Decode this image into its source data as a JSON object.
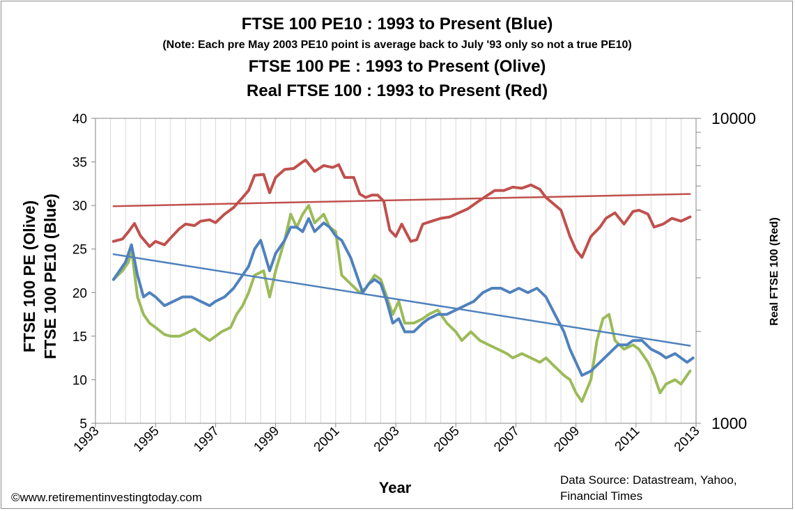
{
  "chart_data": {
    "type": "line",
    "title_lines": [
      "FTSE 100 PE10 : 1993 to Present (Blue)",
      "(Note:  Each pre May 2003  PE10 point is average  back to July '93 only so not a true PE10)",
      "FTSE 100 PE : 1993 to Present (Olive)",
      "Real FTSE 100 : 1993 to Present (Red)"
    ],
    "xlabel": "Year",
    "ylabel_left_outer": "FTSE 100 PE (Olive)",
    "ylabel_left_inner": "FTSE 100 PE10 (Blue)",
    "ylabel_right": "Real  FTSE 100 (Red)",
    "xlim": [
      1993,
      2013
    ],
    "x_ticks": [
      1993,
      1995,
      1997,
      1999,
      2001,
      2003,
      2005,
      2007,
      2009,
      2011,
      2013
    ],
    "x_tick_labels": [
      "1993",
      "1995",
      "1997",
      "1999",
      "2001",
      "2003",
      "2005",
      "2007",
      "2009",
      "2011",
      "2013"
    ],
    "ylim_left": [
      5,
      40
    ],
    "y_ticks_left": [
      5,
      10,
      15,
      20,
      25,
      30,
      35,
      40
    ],
    "y_tick_labels_left": [
      "5",
      "10",
      "15",
      "20",
      "25",
      "30",
      "35",
      "40"
    ],
    "ylim_right": [
      1000,
      10000
    ],
    "y_scale_right": "log",
    "y_tick_labels_right": [
      "1000",
      "10000"
    ],
    "grid": "vertical",
    "series": [
      {
        "name": "Real FTSE 100",
        "color": "#c0504d",
        "axis": "right",
        "points": [
          [
            1993.6,
            3950
          ],
          [
            1993.9,
            4020
          ],
          [
            1994.1,
            4250
          ],
          [
            1994.3,
            4520
          ],
          [
            1994.5,
            4120
          ],
          [
            1994.8,
            3800
          ],
          [
            1995.0,
            3950
          ],
          [
            1995.3,
            3850
          ],
          [
            1995.5,
            4050
          ],
          [
            1995.8,
            4350
          ],
          [
            1996.0,
            4500
          ],
          [
            1996.3,
            4450
          ],
          [
            1996.5,
            4600
          ],
          [
            1996.8,
            4650
          ],
          [
            1997.0,
            4550
          ],
          [
            1997.3,
            4850
          ],
          [
            1997.6,
            5100
          ],
          [
            1997.9,
            5500
          ],
          [
            1998.1,
            5800
          ],
          [
            1998.3,
            6500
          ],
          [
            1998.6,
            6550
          ],
          [
            1998.8,
            5700
          ],
          [
            1999.0,
            6400
          ],
          [
            1999.3,
            6800
          ],
          [
            1999.6,
            6850
          ],
          [
            1999.9,
            7200
          ],
          [
            2000.0,
            7300
          ],
          [
            2000.3,
            6700
          ],
          [
            2000.6,
            7000
          ],
          [
            2000.9,
            6900
          ],
          [
            2001.1,
            7050
          ],
          [
            2001.3,
            6400
          ],
          [
            2001.6,
            6400
          ],
          [
            2001.8,
            5650
          ],
          [
            2002.0,
            5500
          ],
          [
            2002.2,
            5600
          ],
          [
            2002.4,
            5600
          ],
          [
            2002.6,
            5350
          ],
          [
            2002.8,
            4300
          ],
          [
            2003.0,
            4100
          ],
          [
            2003.2,
            4500
          ],
          [
            2003.5,
            3950
          ],
          [
            2003.7,
            4000
          ],
          [
            2003.9,
            4500
          ],
          [
            2004.2,
            4600
          ],
          [
            2004.5,
            4700
          ],
          [
            2004.8,
            4750
          ],
          [
            2005.1,
            4900
          ],
          [
            2005.4,
            5050
          ],
          [
            2005.7,
            5300
          ],
          [
            2006.0,
            5550
          ],
          [
            2006.3,
            5800
          ],
          [
            2006.6,
            5800
          ],
          [
            2006.9,
            5950
          ],
          [
            2007.2,
            5900
          ],
          [
            2007.5,
            6050
          ],
          [
            2007.8,
            5850
          ],
          [
            2008.0,
            5500
          ],
          [
            2008.2,
            5300
          ],
          [
            2008.5,
            5000
          ],
          [
            2008.8,
            4100
          ],
          [
            2009.0,
            3700
          ],
          [
            2009.2,
            3500
          ],
          [
            2009.5,
            4100
          ],
          [
            2009.8,
            4400
          ],
          [
            2010.0,
            4700
          ],
          [
            2010.3,
            4900
          ],
          [
            2010.6,
            4500
          ],
          [
            2010.9,
            4950
          ],
          [
            2011.1,
            5000
          ],
          [
            2011.4,
            4850
          ],
          [
            2011.6,
            4400
          ],
          [
            2011.9,
            4500
          ],
          [
            2012.2,
            4700
          ],
          [
            2012.5,
            4600
          ],
          [
            2012.8,
            4750
          ]
        ]
      },
      {
        "name": "Real FTSE 100 trend",
        "color": "#c0504d",
        "axis": "right",
        "points": [
          [
            1993.6,
            5150
          ],
          [
            2012.8,
            5650
          ]
        ]
      },
      {
        "name": "FTSE 100 PE",
        "color": "#9bbb59",
        "axis": "left",
        "points": [
          [
            1993.6,
            21.5
          ],
          [
            1993.9,
            22.5
          ],
          [
            1994.1,
            23.5
          ],
          [
            1994.2,
            25.0
          ],
          [
            1994.4,
            19.5
          ],
          [
            1994.6,
            17.5
          ],
          [
            1994.8,
            16.5
          ],
          [
            1995.0,
            16.0
          ],
          [
            1995.3,
            15.2
          ],
          [
            1995.5,
            15.0
          ],
          [
            1995.8,
            15.0
          ],
          [
            1996.0,
            15.3
          ],
          [
            1996.3,
            15.8
          ],
          [
            1996.5,
            15.2
          ],
          [
            1996.8,
            14.5
          ],
          [
            1997.0,
            15.0
          ],
          [
            1997.2,
            15.5
          ],
          [
            1997.5,
            16.0
          ],
          [
            1997.7,
            17.5
          ],
          [
            1997.9,
            18.5
          ],
          [
            1998.1,
            20.0
          ],
          [
            1998.3,
            22.0
          ],
          [
            1998.6,
            22.5
          ],
          [
            1998.8,
            19.5
          ],
          [
            1999.0,
            22.5
          ],
          [
            1999.3,
            26.0
          ],
          [
            1999.5,
            29.0
          ],
          [
            1999.7,
            27.5
          ],
          [
            1999.9,
            29.0
          ],
          [
            2000.1,
            30.0
          ],
          [
            2000.3,
            28.0
          ],
          [
            2000.6,
            29.0
          ],
          [
            2000.8,
            27.5
          ],
          [
            2001.0,
            27.0
          ],
          [
            2001.2,
            22.0
          ],
          [
            2001.5,
            21.0
          ],
          [
            2001.8,
            20.0
          ],
          [
            2002.0,
            20.5
          ],
          [
            2002.3,
            22.0
          ],
          [
            2002.5,
            21.5
          ],
          [
            2002.7,
            19.5
          ],
          [
            2002.9,
            17.5
          ],
          [
            2003.1,
            19.0
          ],
          [
            2003.3,
            16.5
          ],
          [
            2003.6,
            16.5
          ],
          [
            2003.9,
            17.0
          ],
          [
            2004.1,
            17.5
          ],
          [
            2004.4,
            18.0
          ],
          [
            2004.7,
            16.5
          ],
          [
            2005.0,
            15.5
          ],
          [
            2005.2,
            14.5
          ],
          [
            2005.5,
            15.5
          ],
          [
            2005.8,
            14.5
          ],
          [
            2006.1,
            14.0
          ],
          [
            2006.4,
            13.5
          ],
          [
            2006.7,
            13.0
          ],
          [
            2006.9,
            12.5
          ],
          [
            2007.2,
            13.0
          ],
          [
            2007.5,
            12.5
          ],
          [
            2007.8,
            12.0
          ],
          [
            2008.0,
            12.5
          ],
          [
            2008.3,
            11.5
          ],
          [
            2008.6,
            10.5
          ],
          [
            2008.8,
            10.0
          ],
          [
            2009.0,
            8.5
          ],
          [
            2009.2,
            7.5
          ],
          [
            2009.5,
            10.0
          ],
          [
            2009.7,
            14.5
          ],
          [
            2009.9,
            17.0
          ],
          [
            2010.1,
            17.5
          ],
          [
            2010.3,
            14.5
          ],
          [
            2010.6,
            13.5
          ],
          [
            2010.9,
            14.0
          ],
          [
            2011.1,
            13.5
          ],
          [
            2011.4,
            12.0
          ],
          [
            2011.6,
            10.5
          ],
          [
            2011.8,
            8.5
          ],
          [
            2012.0,
            9.5
          ],
          [
            2012.3,
            10.0
          ],
          [
            2012.5,
            9.5
          ],
          [
            2012.8,
            11.0
          ]
        ]
      },
      {
        "name": "FTSE 100 PE10",
        "color": "#4f81bd",
        "axis": "left",
        "points": [
          [
            1993.6,
            21.5
          ],
          [
            1993.8,
            22.5
          ],
          [
            1994.0,
            23.5
          ],
          [
            1994.2,
            25.5
          ],
          [
            1994.4,
            22.0
          ],
          [
            1994.6,
            19.5
          ],
          [
            1994.8,
            20.0
          ],
          [
            1995.0,
            19.5
          ],
          [
            1995.3,
            18.5
          ],
          [
            1995.6,
            19.0
          ],
          [
            1995.9,
            19.5
          ],
          [
            1996.2,
            19.5
          ],
          [
            1996.5,
            19.0
          ],
          [
            1996.8,
            18.5
          ],
          [
            1997.0,
            19.0
          ],
          [
            1997.3,
            19.5
          ],
          [
            1997.6,
            20.5
          ],
          [
            1997.9,
            22.0
          ],
          [
            1998.1,
            23.0
          ],
          [
            1998.3,
            25.0
          ],
          [
            1998.5,
            26.0
          ],
          [
            1998.8,
            22.5
          ],
          [
            1999.0,
            24.5
          ],
          [
            1999.3,
            26.0
          ],
          [
            1999.5,
            27.5
          ],
          [
            1999.7,
            27.5
          ],
          [
            1999.9,
            27.0
          ],
          [
            2000.1,
            28.5
          ],
          [
            2000.3,
            27.0
          ],
          [
            2000.6,
            28.0
          ],
          [
            2000.8,
            27.5
          ],
          [
            2001.0,
            26.5
          ],
          [
            2001.2,
            26.0
          ],
          [
            2001.5,
            24.0
          ],
          [
            2001.7,
            22.0
          ],
          [
            2001.9,
            20.0
          ],
          [
            2002.1,
            21.0
          ],
          [
            2002.3,
            21.5
          ],
          [
            2002.5,
            21.0
          ],
          [
            2002.7,
            19.0
          ],
          [
            2002.9,
            16.5
          ],
          [
            2003.1,
            17.0
          ],
          [
            2003.3,
            15.5
          ],
          [
            2003.6,
            15.5
          ],
          [
            2003.9,
            16.5
          ],
          [
            2004.1,
            17.0
          ],
          [
            2004.4,
            17.5
          ],
          [
            2004.7,
            17.5
          ],
          [
            2005.0,
            18.0
          ],
          [
            2005.3,
            18.5
          ],
          [
            2005.6,
            19.0
          ],
          [
            2005.9,
            20.0
          ],
          [
            2006.2,
            20.5
          ],
          [
            2006.5,
            20.5
          ],
          [
            2006.8,
            20.0
          ],
          [
            2007.1,
            20.5
          ],
          [
            2007.4,
            20.0
          ],
          [
            2007.7,
            20.5
          ],
          [
            2008.0,
            19.5
          ],
          [
            2008.3,
            17.5
          ],
          [
            2008.6,
            15.5
          ],
          [
            2008.8,
            13.5
          ],
          [
            2009.0,
            12.0
          ],
          [
            2009.2,
            10.5
          ],
          [
            2009.5,
            11.0
          ],
          [
            2009.8,
            12.0
          ],
          [
            2010.1,
            13.0
          ],
          [
            2010.4,
            14.0
          ],
          [
            2010.7,
            14.0
          ],
          [
            2010.9,
            14.5
          ],
          [
            2011.2,
            14.5
          ],
          [
            2011.5,
            13.5
          ],
          [
            2011.8,
            13.0
          ],
          [
            2012.0,
            12.5
          ],
          [
            2012.3,
            13.0
          ],
          [
            2012.5,
            12.5
          ],
          [
            2012.7,
            12.0
          ],
          [
            2012.9,
            12.5
          ]
        ]
      },
      {
        "name": "FTSE 100 PE10 trend",
        "color": "#4f81bd",
        "axis": "left",
        "points": [
          [
            1993.6,
            24.4
          ],
          [
            2012.8,
            13.9
          ]
        ]
      }
    ],
    "source_note_lines": [
      "Data Source: Datastream,   Yahoo,",
      "Financial Times"
    ],
    "footer": "©www.retirementinvestingtoday.com"
  }
}
